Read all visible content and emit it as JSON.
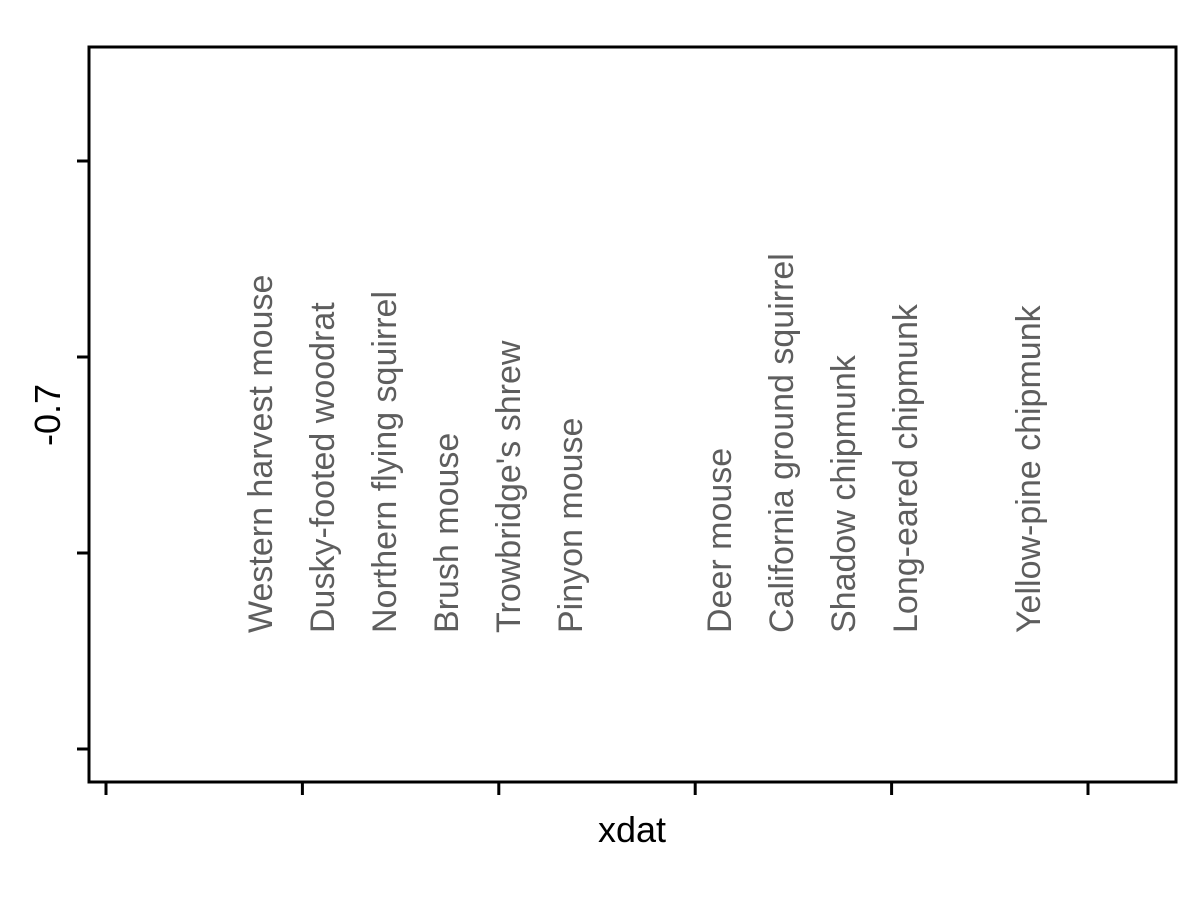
{
  "chart_data": {
    "type": "scatter",
    "title": "",
    "xlabel": "xdat",
    "ylabel": "-0.7",
    "x_ticks_count": 6,
    "y_ticks_count": 4,
    "grid": false,
    "legend": "none",
    "label_color": "#5e5e5e",
    "labels": [
      {
        "text": "Western harvest mouse"
      },
      {
        "text": "Dusky-footed woodrat"
      },
      {
        "text": "Northern flying squirrel"
      },
      {
        "text": "Brush mouse"
      },
      {
        "text": "Trowbridge's shrew"
      },
      {
        "text": "Pinyon mouse"
      },
      {
        "text": "Deer mouse"
      },
      {
        "text": "California ground squirrel"
      },
      {
        "text": "Shadow chipmunk"
      },
      {
        "text": "Long-eared chipmunk"
      },
      {
        "text": "Yellow-pine chipmunk"
      }
    ]
  }
}
